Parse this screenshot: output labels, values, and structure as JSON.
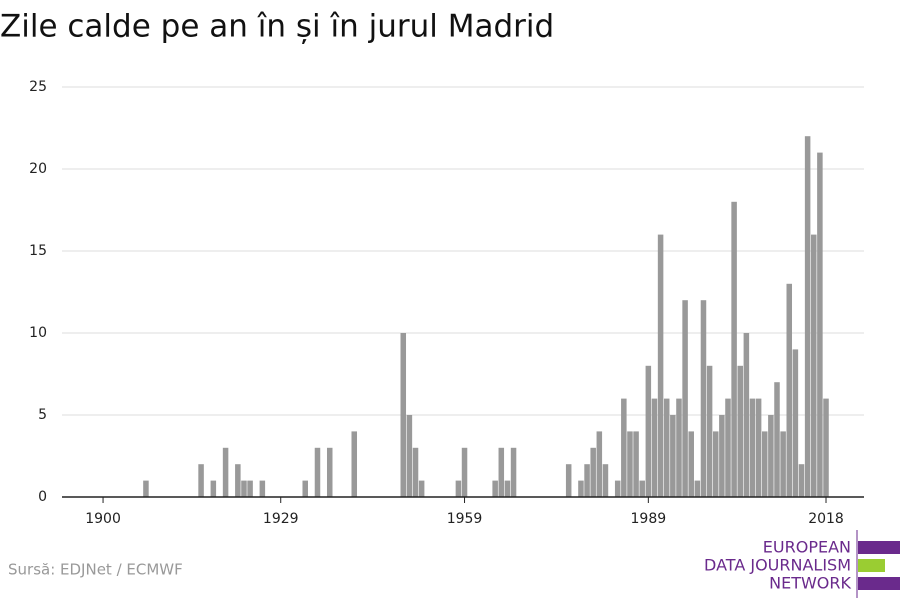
{
  "chart_data": {
    "type": "bar",
    "title": "Zile calde pe an în și în jurul Madrid",
    "source": "Sursă: EDJNet / ECMWF",
    "logo": [
      "EUROPEAN",
      "DATA JOURNALISM",
      "NETWORK"
    ],
    "color": "#999999",
    "x": [
      1907,
      1916,
      1918,
      1920,
      1922,
      1923,
      1924,
      1926,
      1933,
      1935,
      1937,
      1941,
      1949,
      1950,
      1951,
      1952,
      1958,
      1959,
      1964,
      1965,
      1966,
      1967,
      1976,
      1978,
      1979,
      1980,
      1981,
      1982,
      1984,
      1985,
      1986,
      1987,
      1988,
      1989,
      1990,
      1991,
      1992,
      1993,
      1994,
      1995,
      1996,
      1997,
      1998,
      1999,
      2000,
      2001,
      2002,
      2003,
      2004,
      2005,
      2006,
      2007,
      2008,
      2009,
      2010,
      2011,
      2012,
      2013,
      2014,
      2015,
      2016,
      2017,
      2018
    ],
    "values": [
      1,
      2,
      1,
      3,
      2,
      1,
      1,
      1,
      1,
      3,
      3,
      4,
      10,
      5,
      3,
      1,
      1,
      3,
      1,
      3,
      1,
      3,
      2,
      1,
      2,
      3,
      4,
      2,
      1,
      6,
      4,
      4,
      1,
      8,
      6,
      16,
      6,
      5,
      6,
      12,
      4,
      1,
      12,
      8,
      4,
      5,
      6,
      18,
      8,
      10,
      6,
      6,
      4,
      5,
      7,
      4,
      13,
      9,
      2,
      22,
      16,
      21,
      6
    ],
    "xlim": [
      1893.3,
      2024.2
    ],
    "xticks": [
      1900,
      1929,
      1959,
      1989,
      2018
    ],
    "ylim": [
      0,
      25
    ],
    "yticks": [
      0,
      5,
      10,
      15,
      20,
      25
    ],
    "grid": true
  }
}
